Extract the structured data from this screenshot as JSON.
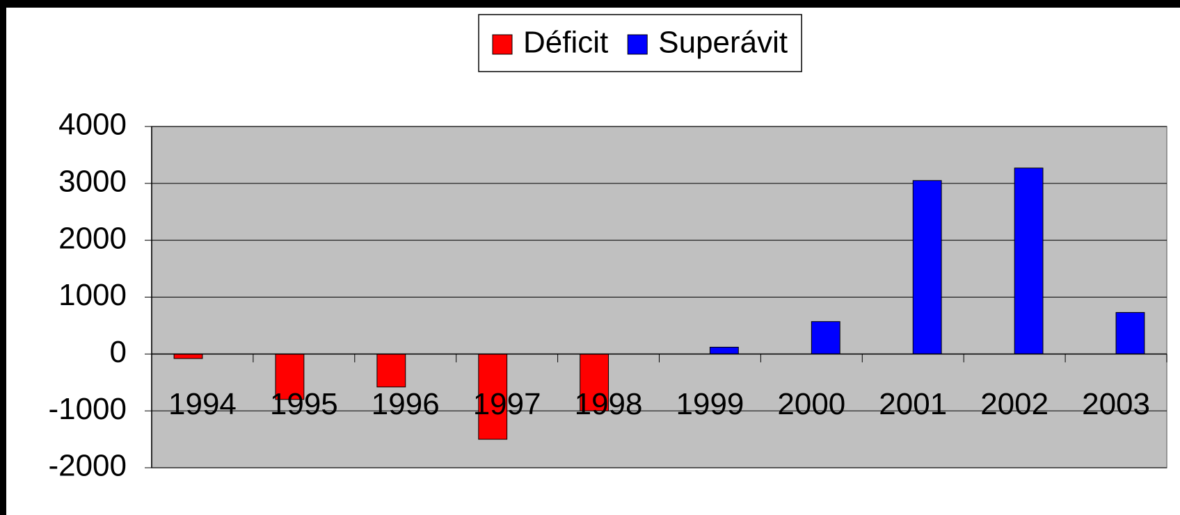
{
  "chart_data": {
    "type": "bar",
    "categories": [
      "1994",
      "1995",
      "1996",
      "1997",
      "1998",
      "1999",
      "2000",
      "2001",
      "2002",
      "2003"
    ],
    "series": [
      {
        "name": "Déficit",
        "color": "#ff0000",
        "values": [
          -80,
          -800,
          -580,
          -1500,
          -1000,
          null,
          null,
          null,
          null,
          null
        ]
      },
      {
        "name": "Superávit",
        "color": "#0000ff",
        "values": [
          null,
          null,
          null,
          null,
          null,
          120,
          570,
          3050,
          3270,
          730
        ]
      }
    ],
    "ylim": [
      -2000,
      4000
    ],
    "yticks": [
      -2000,
      -1000,
      0,
      1000,
      2000,
      3000,
      4000
    ],
    "grid": true,
    "legend": "top",
    "plot_background": "#c0c0c0"
  }
}
